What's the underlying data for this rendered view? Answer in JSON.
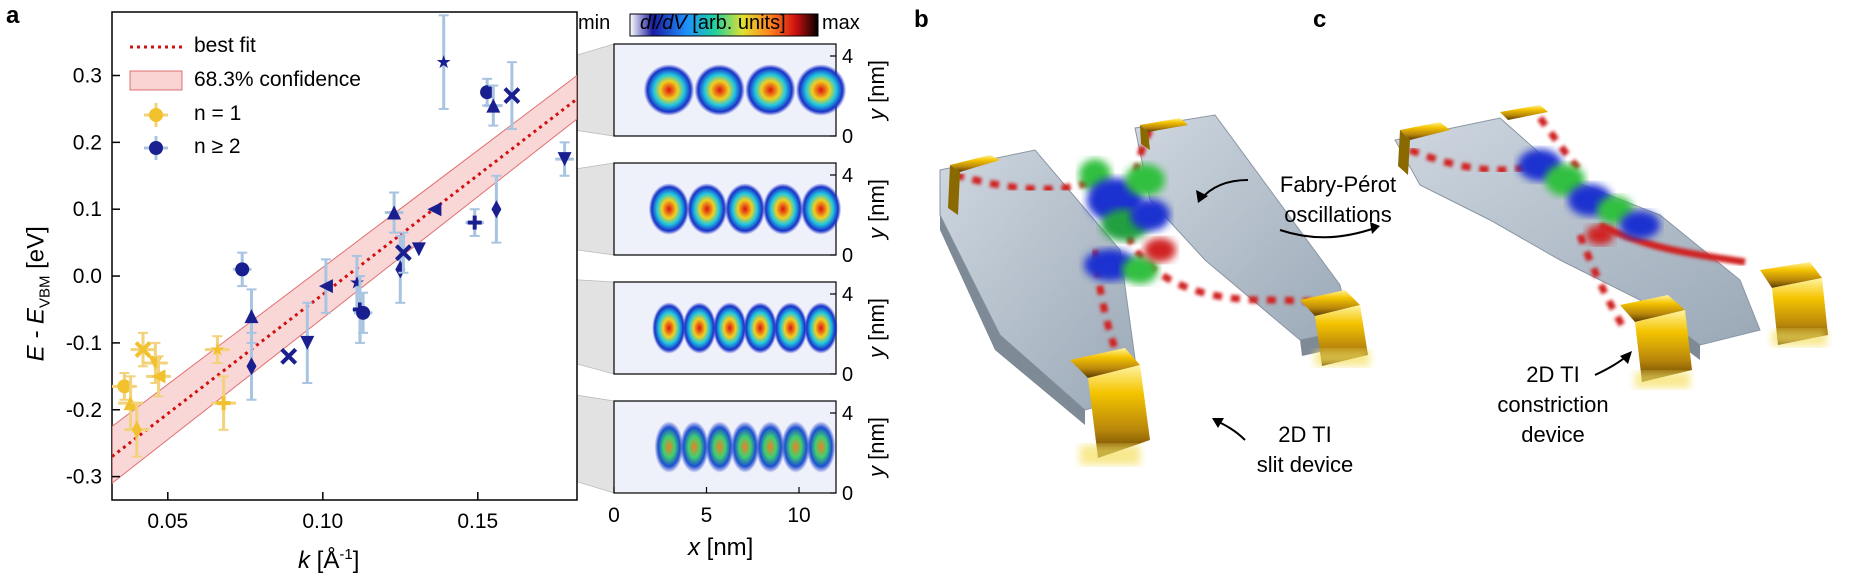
{
  "panels": {
    "a": "a",
    "b": "b",
    "c": "c"
  },
  "chart_data": {
    "type": "scatter",
    "xlabel_main": "k",
    "xlabel_unit": "[Å",
    "xlabel_sup": "-1",
    "xlabel_close": "]",
    "ylabel_main": "E - E",
    "ylabel_sub": "VBM",
    "ylabel_unit": " [eV]",
    "xlim": [
      0.032,
      0.182
    ],
    "ylim": [
      -0.335,
      0.395
    ],
    "xticks": [
      0.05,
      0.1,
      0.15
    ],
    "xtick_labels": [
      "0.05",
      "0.10",
      "0.15"
    ],
    "yticks": [
      -0.3,
      -0.2,
      -0.1,
      0.0,
      0.1,
      0.2,
      0.3
    ],
    "ytick_labels": [
      "-0.3",
      "-0.2",
      "-0.1",
      "0.0",
      "0.1",
      "0.2",
      "0.3"
    ],
    "legend": {
      "best_fit": "best fit",
      "confidence": "68.3% confidence",
      "n1": "n = 1",
      "n2": "n ≥ 2"
    },
    "fit": {
      "x": [
        0.032,
        0.182
      ],
      "y": [
        -0.27,
        0.265
      ]
    },
    "confidence_band": {
      "x": [
        0.032,
        0.182
      ],
      "lower": [
        -0.31,
        0.235
      ],
      "upper": [
        -0.225,
        0.3
      ]
    },
    "series": [
      {
        "name": "n = 1",
        "color": "#f2c12e",
        "points": [
          {
            "x": 0.036,
            "y": -0.165,
            "xerr": 0.004,
            "yerr": 0.02
          },
          {
            "x": 0.038,
            "y": -0.19,
            "xerr": 0.004,
            "yerr": 0.04
          },
          {
            "x": 0.04,
            "y": -0.23,
            "xerr": 0.004,
            "yerr": 0.04
          },
          {
            "x": 0.042,
            "y": -0.11,
            "xerr": 0.004,
            "yerr": 0.025
          },
          {
            "x": 0.046,
            "y": -0.13,
            "xerr": 0.004,
            "yerr": 0.03
          },
          {
            "x": 0.047,
            "y": -0.15,
            "xerr": 0.004,
            "yerr": 0.03
          },
          {
            "x": 0.066,
            "y": -0.11,
            "xerr": 0.004,
            "yerr": 0.02
          },
          {
            "x": 0.068,
            "y": -0.19,
            "xerr": 0.004,
            "yerr": 0.04
          }
        ]
      },
      {
        "name": "n ≥ 2",
        "color": "#1a1f8f",
        "points": [
          {
            "x": 0.074,
            "y": 0.01,
            "xerr": 0.003,
            "yerr": 0.025
          },
          {
            "x": 0.077,
            "y": -0.06,
            "xerr": 0.0,
            "yerr": 0.04
          },
          {
            "x": 0.077,
            "y": -0.135,
            "xerr": 0.0,
            "yerr": 0.05
          },
          {
            "x": 0.089,
            "y": -0.12,
            "xerr": 0.0,
            "yerr": 0.0
          },
          {
            "x": 0.095,
            "y": -0.1,
            "xerr": 0.0,
            "yerr": 0.06
          },
          {
            "x": 0.101,
            "y": -0.015,
            "xerr": 0.0,
            "yerr": 0.04
          },
          {
            "x": 0.111,
            "y": -0.01,
            "xerr": 0.0,
            "yerr": 0.04
          },
          {
            "x": 0.112,
            "y": -0.05,
            "xerr": 0.0,
            "yerr": 0.05
          },
          {
            "x": 0.113,
            "y": -0.055,
            "xerr": 0.003,
            "yerr": 0.03
          },
          {
            "x": 0.123,
            "y": 0.095,
            "xerr": 0.003,
            "yerr": 0.03
          },
          {
            "x": 0.125,
            "y": 0.01,
            "xerr": 0.0,
            "yerr": 0.05
          },
          {
            "x": 0.126,
            "y": 0.035,
            "xerr": 0.0,
            "yerr": 0.03
          },
          {
            "x": 0.131,
            "y": 0.04,
            "xerr": 0.0,
            "yerr": 0.0
          },
          {
            "x": 0.136,
            "y": 0.1,
            "xerr": 0.0,
            "yerr": 0.0
          },
          {
            "x": 0.139,
            "y": 0.32,
            "xerr": 0.0,
            "yerr": 0.07
          },
          {
            "x": 0.149,
            "y": 0.08,
            "xerr": 0.003,
            "yerr": 0.02
          },
          {
            "x": 0.153,
            "y": 0.275,
            "xerr": 0.0,
            "yerr": 0.02
          },
          {
            "x": 0.155,
            "y": 0.255,
            "xerr": 0.003,
            "yerr": 0.03
          },
          {
            "x": 0.156,
            "y": 0.1,
            "xerr": 0.0,
            "yerr": 0.05
          },
          {
            "x": 0.161,
            "y": 0.27,
            "xerr": 0.0,
            "yerr": 0.05
          },
          {
            "x": 0.178,
            "y": 0.175,
            "xerr": 0.003,
            "yerr": 0.025
          }
        ]
      }
    ],
    "colorbar": {
      "min": "min",
      "quantity": "dI/dV",
      "units": "[arb. units]",
      "max": "max"
    },
    "maps": {
      "xlabel": "x",
      "xunit": " [nm]",
      "ylabel": "y",
      "yunit": " [nm]",
      "xticks": [
        "0",
        "5",
        "10"
      ],
      "yticks": [
        "4",
        "0"
      ]
    }
  },
  "figure_b": {
    "annotation_fp_line1": "Fabry-Pérot",
    "annotation_fp_line2": "oscillations",
    "label_slit_line1": "2D TI",
    "label_slit_line2": "slit device"
  },
  "figure_c": {
    "label_constr_line1": "2D TI",
    "label_constr_line2": "constriction",
    "label_constr_line3": "device"
  }
}
